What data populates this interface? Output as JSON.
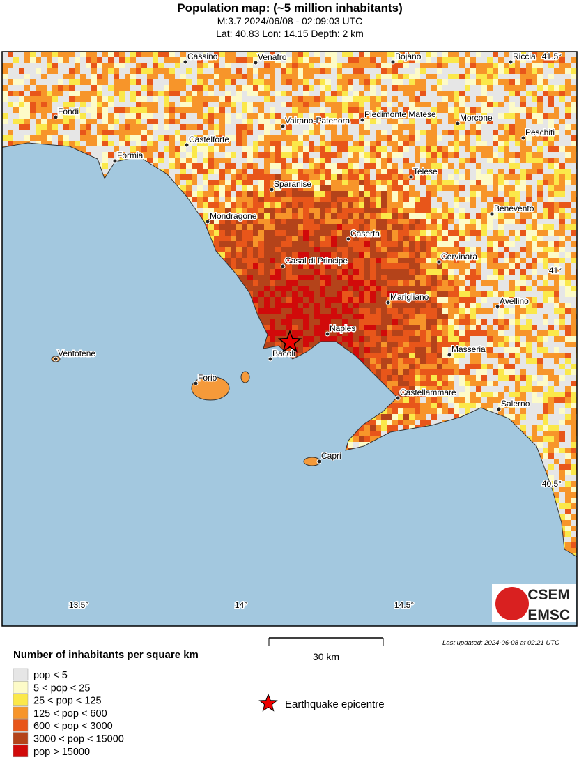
{
  "header": {
    "title": "Population map: (~5 million inhabitants)",
    "line1": "M:3.7 2024/06/08 - 02:09:03 UTC",
    "line2": "Lat: 40.83 Lon: 14.15 Depth: 2 km"
  },
  "map": {
    "lon_labels": [
      "13.5°",
      "14°",
      "14.5°"
    ],
    "lat_labels": [
      "41.5°",
      "41°",
      "40.5°"
    ],
    "cities": [
      "Cassino",
      "Venafro",
      "Bojano",
      "Riccia",
      "Fondi",
      "Vairano-Patenora",
      "Piedimonte Matese",
      "Morcone",
      "Peschiti",
      "Castelforte",
      "Formia",
      "Telese",
      "Sparanise",
      "Benevento",
      "Mondragone",
      "Caserta",
      "Cervinara",
      "Casal di Principe",
      "Marigliano",
      "Avellino",
      "Naples",
      "Bacoli",
      "Ventotene",
      "Masseria",
      "Forio",
      "Castellammare",
      "Salerno",
      "Capri"
    ],
    "scale": "30 km",
    "updated": "Last updated: 2024-06-08 at 02:21 UTC",
    "logo": [
      "CSEM",
      "EMSC"
    ]
  },
  "legend": {
    "title": "Number of inhabitants per square km",
    "items": [
      {
        "label": "pop < 5",
        "color": "#e6e6e6"
      },
      {
        "label": "5 < pop < 25",
        "color": "#fdfbc8"
      },
      {
        "label": "25 < pop < 125",
        "color": "#fbe84a"
      },
      {
        "label": "125 < pop < 600",
        "color": "#f7952a"
      },
      {
        "label": "600 < pop < 3000",
        "color": "#e8561a"
      },
      {
        "label": "3000 < pop < 15000",
        "color": "#b4431a"
      },
      {
        "label": "pop > 15000",
        "color": "#d10a0a"
      }
    ],
    "epicentre": "Earthquake epicentre"
  }
}
